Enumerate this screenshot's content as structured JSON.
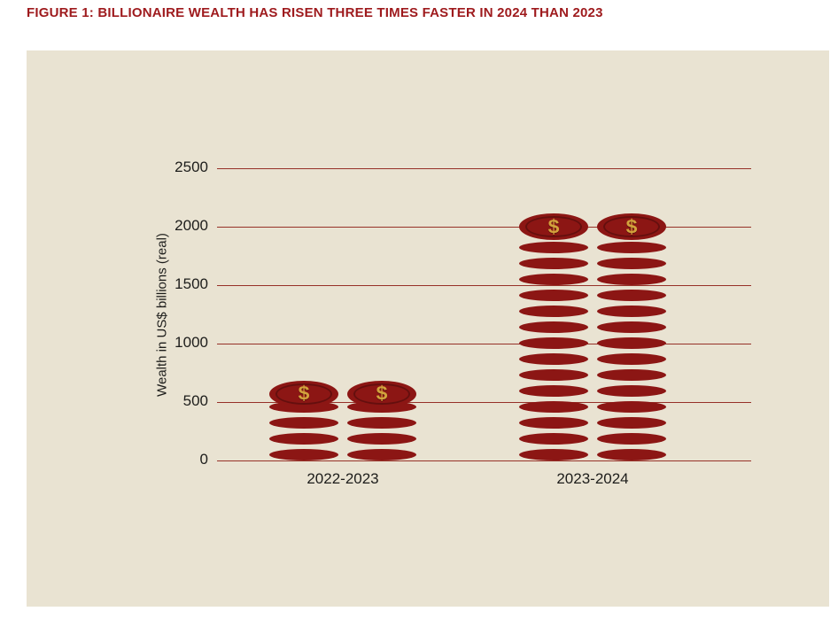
{
  "title": "FIGURE 1: BILLIONAIRE WEALTH HAS RISEN THREE TIMES FASTER IN 2024 THAN 2023",
  "chart_data": {
    "type": "bar",
    "title": "FIGURE 1: BILLIONAIRE WEALTH HAS RISEN THREE TIMES FASTER IN 2024 THAN 2023",
    "categories": [
      "2022-2023",
      "2023-2024"
    ],
    "values": [
      570,
      2000
    ],
    "stacks_per_category": 2,
    "xlabel": "",
    "ylabel": "Wealth in US$ billions (real)",
    "yticks": [
      0,
      500,
      1000,
      1500,
      2000,
      2500
    ],
    "ylim": [
      0,
      2500
    ],
    "grid": true,
    "legend_position": "none",
    "currency_symbol": "$",
    "colors": {
      "coin": "#8c1614",
      "dollar": "#d2a23c",
      "grid": "#963128",
      "background": "#e9e3d2",
      "title": "#9e1a1d",
      "text": "#1d1d1b"
    }
  }
}
